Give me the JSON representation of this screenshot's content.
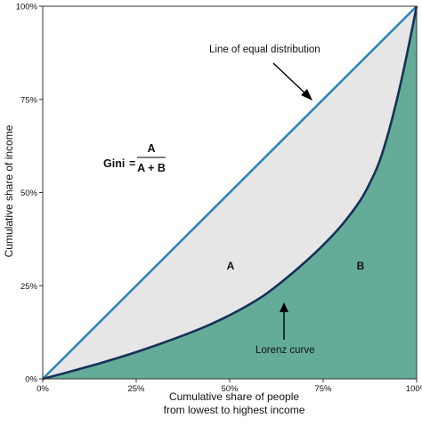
{
  "chart_data": {
    "type": "area",
    "xlabel": [
      "Cumulative share of people",
      "from lowest to highest income"
    ],
    "ylabel": "Cumulative share of income",
    "xlim": [
      0,
      100
    ],
    "ylim": [
      0,
      100
    ],
    "x_ticks": [
      "0%",
      "25%",
      "50%",
      "75%",
      "100%"
    ],
    "y_ticks": [
      "0%",
      "25%",
      "50%",
      "75%",
      "100%"
    ],
    "grid": false,
    "series": [
      {
        "name": "Line of equal distribution",
        "x": [
          0,
          100
        ],
        "y": [
          0,
          100
        ]
      },
      {
        "name": "Lorenz curve",
        "x": [
          0,
          5,
          10,
          15,
          20,
          25,
          30,
          35,
          40,
          45,
          50,
          55,
          60,
          65,
          70,
          75,
          80,
          85,
          88,
          90,
          92,
          94,
          96,
          98,
          100
        ],
        "y": [
          0,
          1.3,
          2.7,
          4.1,
          5.6,
          7.2,
          8.9,
          10.7,
          12.6,
          14.7,
          17.1,
          19.8,
          23.0,
          26.9,
          31.2,
          35.9,
          41.3,
          48.0,
          53.6,
          58.2,
          64.5,
          72.0,
          80.5,
          90.0,
          100
        ]
      }
    ],
    "annotations": {
      "equal_line": "Line of equal distribution",
      "lorenz": "Lorenz curve",
      "region_a": "A",
      "region_b": "B"
    },
    "formula": {
      "lhs": "Gini",
      "equals": "=",
      "numerator": "A",
      "denominator": "A + B"
    },
    "colors": {
      "equal_line": "#2e86b8",
      "lorenz_line": "#17305a",
      "area_a": "#e6e6e6",
      "area_b": "#64ac98",
      "axis": "#333333"
    }
  }
}
